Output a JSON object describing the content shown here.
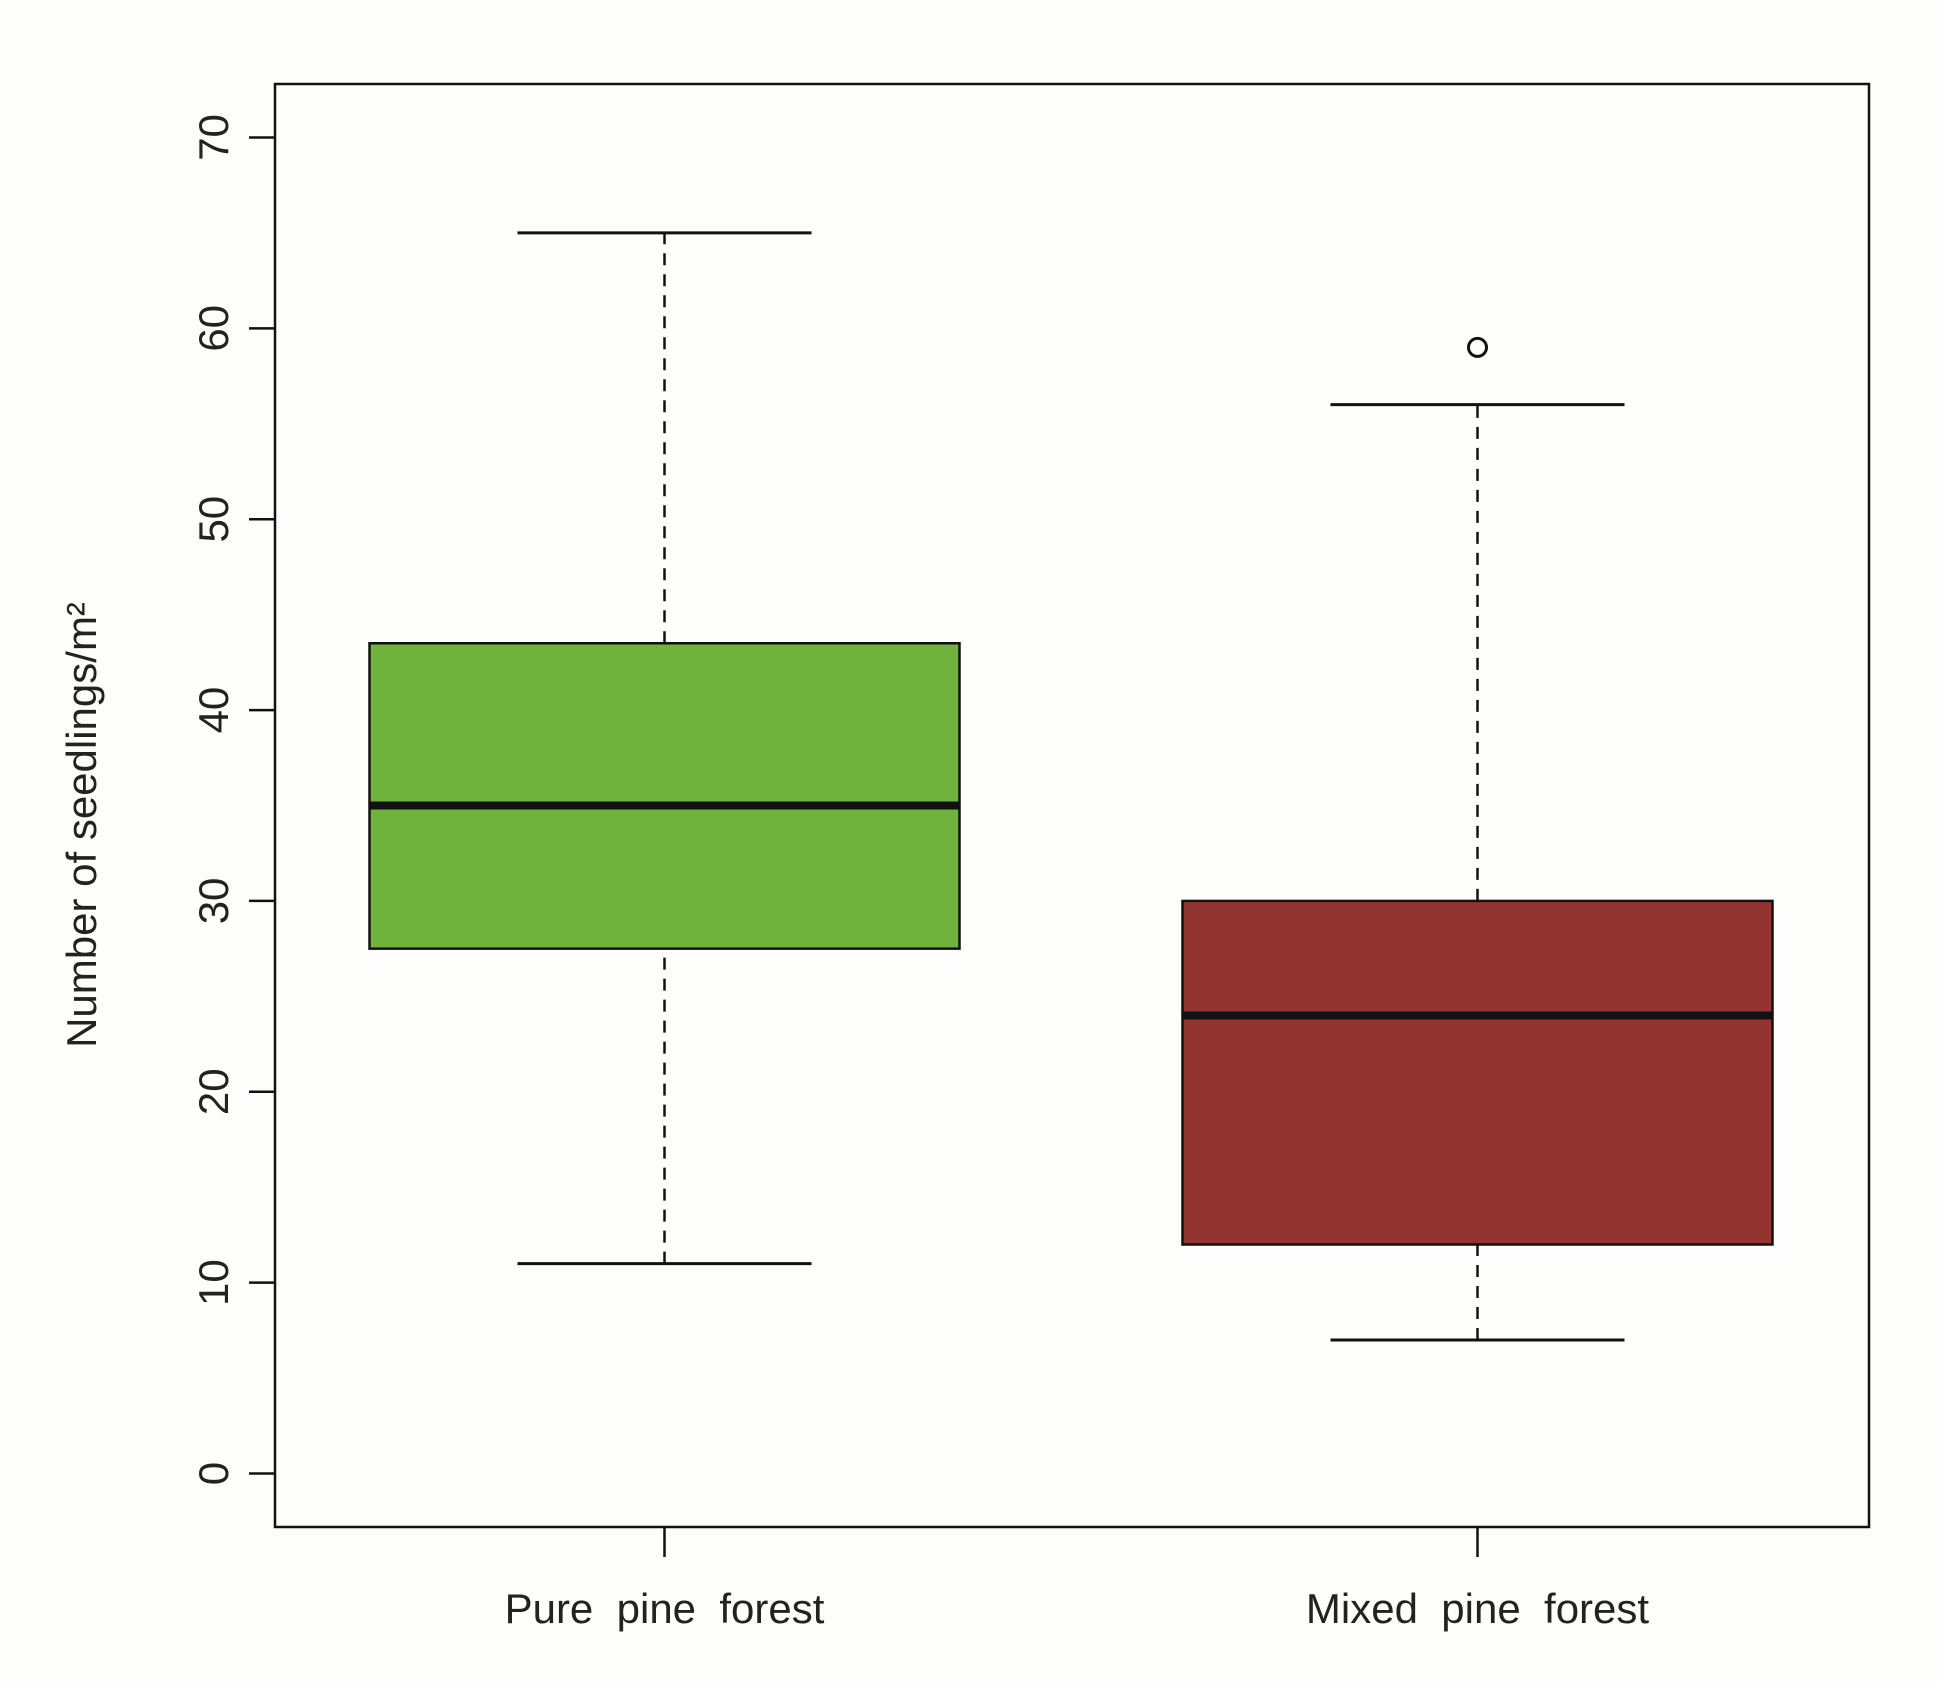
{
  "chart_data": {
    "type": "boxplot",
    "y_label": "Number of seedlings/m²",
    "categories": [
      "Pure  pine  forest",
      "Mixed  pine  forest"
    ],
    "boxes": [
      {
        "color": "#70b33c",
        "min": 11,
        "q1": 27.5,
        "median": 35,
        "q3": 43.5,
        "max": 65,
        "outliers": []
      },
      {
        "color": "#943430",
        "min": 7,
        "q1": 12,
        "median": 24,
        "q3": 30,
        "max": 56,
        "outliers": [
          59
        ]
      }
    ],
    "ylim": [
      -2.8,
      72.8
    ],
    "yticks": [
      0,
      10,
      20,
      30,
      40,
      50,
      60,
      70
    ]
  }
}
